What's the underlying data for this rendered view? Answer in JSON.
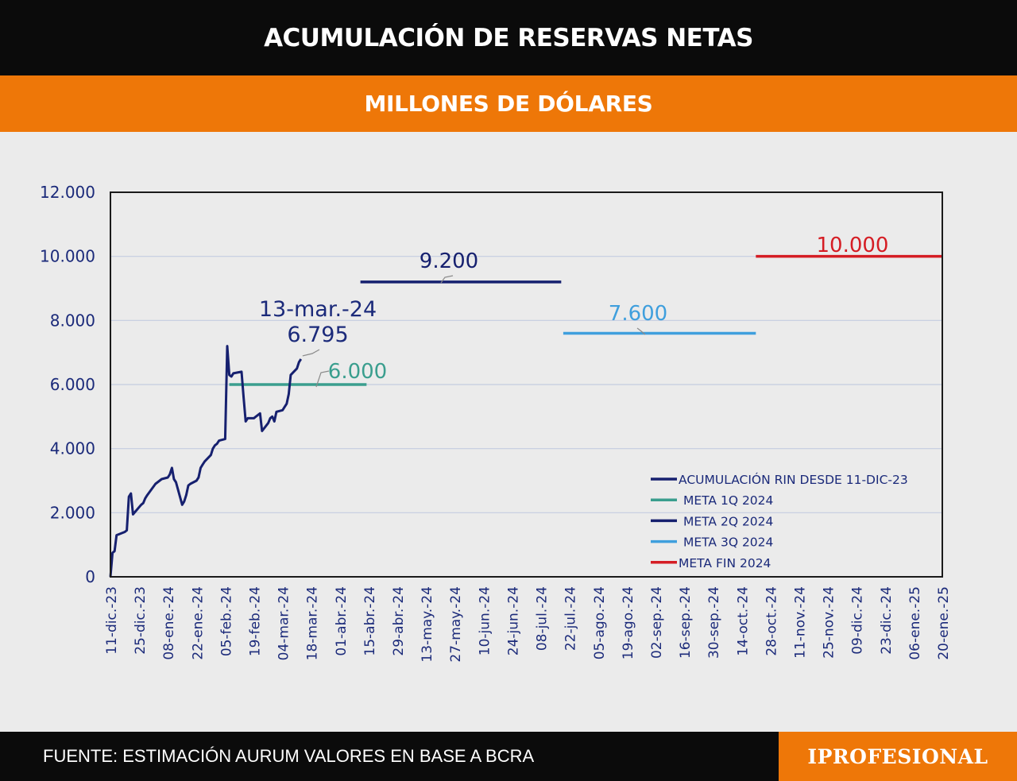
{
  "header": {
    "title": "ACUMULACIÓN DE RESERVAS NETAS",
    "subtitle": "MILLONES DE DÓLARES"
  },
  "footer": {
    "source": "FUENTE: ESTIMACIÓN AURUM VALORES EN BASE A BCRA",
    "brand": "IPROFESIONAL"
  },
  "chart_data": {
    "type": "line",
    "x_categories": [
      "11-dic.-23",
      "25-dic.-23",
      "08-ene.-24",
      "22-ene.-24",
      "05-feb.-24",
      "19-feb.-24",
      "04-mar.-24",
      "18-mar.-24",
      "01-abr.-24",
      "15-abr.-24",
      "29-abr.-24",
      "13-may.-24",
      "27-may.-24",
      "10-jun.-24",
      "24-jun.-24",
      "08-jul.-24",
      "22-jul.-24",
      "05-ago.-24",
      "19-ago.-24",
      "02-sep.-24",
      "16-sep.-24",
      "30-sep.-24",
      "14-oct.-24",
      "28-oct.-24",
      "11-nov.-24",
      "25-nov.-24",
      "09-dic.-24",
      "23-dic.-24",
      "06-ene.-25",
      "20-ene.-25"
    ],
    "y_ticks": [
      "0",
      "2.000",
      "4.000",
      "6.000",
      "8.000",
      "10.000",
      "12.000"
    ],
    "ylim": [
      0,
      12000
    ],
    "grid": true,
    "legend_position": "bottom-right",
    "series": [
      {
        "name": "ACUMULACIÓN RIN DESDE 11-DIC-23",
        "color": "#16206f",
        "points": [
          [
            "2023-12-11",
            0
          ],
          [
            "2023-12-12",
            750
          ],
          [
            "2023-12-13",
            800
          ],
          [
            "2023-12-14",
            1300
          ],
          [
            "2023-12-18",
            1400
          ],
          [
            "2023-12-19",
            1450
          ],
          [
            "2023-12-20",
            2500
          ],
          [
            "2023-12-21",
            2600
          ],
          [
            "2023-12-22",
            1950
          ],
          [
            "2023-12-26",
            2250
          ],
          [
            "2023-12-27",
            2300
          ],
          [
            "2023-12-28",
            2450
          ],
          [
            "2023-12-29",
            2550
          ],
          [
            "2024-01-02",
            2900
          ],
          [
            "2024-01-04",
            3000
          ],
          [
            "2024-01-05",
            3050
          ],
          [
            "2024-01-08",
            3100
          ],
          [
            "2024-01-09",
            3200
          ],
          [
            "2024-01-10",
            3400
          ],
          [
            "2024-01-11",
            3050
          ],
          [
            "2024-01-12",
            2950
          ],
          [
            "2024-01-15",
            2250
          ],
          [
            "2024-01-16",
            2350
          ],
          [
            "2024-01-17",
            2550
          ],
          [
            "2024-01-18",
            2850
          ],
          [
            "2024-01-19",
            2900
          ],
          [
            "2024-01-22",
            3000
          ],
          [
            "2024-01-23",
            3100
          ],
          [
            "2024-01-24",
            3400
          ],
          [
            "2024-01-25",
            3500
          ],
          [
            "2024-01-26",
            3600
          ],
          [
            "2024-01-29",
            3800
          ],
          [
            "2024-01-30",
            4000
          ],
          [
            "2024-01-31",
            4100
          ],
          [
            "2024-02-01",
            4150
          ],
          [
            "2024-02-02",
            4250
          ],
          [
            "2024-02-05",
            4300
          ],
          [
            "2024-02-06",
            7200
          ],
          [
            "2024-02-07",
            6300
          ],
          [
            "2024-02-08",
            6250
          ],
          [
            "2024-02-09",
            6350
          ],
          [
            "2024-02-13",
            6400
          ],
          [
            "2024-02-14",
            5600
          ],
          [
            "2024-02-15",
            4850
          ],
          [
            "2024-02-16",
            4950
          ],
          [
            "2024-02-19",
            4950
          ],
          [
            "2024-02-20",
            5000
          ],
          [
            "2024-02-21",
            5050
          ],
          [
            "2024-02-22",
            5100
          ],
          [
            "2024-02-23",
            4550
          ],
          [
            "2024-02-26",
            4800
          ],
          [
            "2024-02-27",
            4950
          ],
          [
            "2024-02-28",
            5000
          ],
          [
            "2024-02-29",
            4850
          ],
          [
            "2024-03-01",
            5150
          ],
          [
            "2024-03-04",
            5200
          ],
          [
            "2024-03-05",
            5300
          ],
          [
            "2024-03-06",
            5400
          ],
          [
            "2024-03-07",
            5700
          ],
          [
            "2024-03-08",
            6300
          ],
          [
            "2024-03-11",
            6500
          ],
          [
            "2024-03-12",
            6700
          ],
          [
            "2024-03-13",
            6795
          ]
        ]
      },
      {
        "name": "META 1Q 2024",
        "color": "#3a9e8e",
        "from": "2024-02-07",
        "to": "2024-04-14",
        "value": 6000,
        "label": "6.000"
      },
      {
        "name": "META 2Q 2024",
        "color": "#16206f",
        "from": "2024-04-11",
        "to": "2024-07-18",
        "value": 9200,
        "label": "9.200"
      },
      {
        "name": "META 3Q 2024",
        "color": "#3f9fdd",
        "from": "2024-07-19",
        "to": "2024-10-21",
        "value": 7600,
        "label": "7.600"
      },
      {
        "name": "META FIN 2024",
        "color": "#d51d24",
        "from": "2024-10-21",
        "to": "2025-01-20",
        "value": 10000,
        "label": "10.000"
      }
    ],
    "annotations": [
      {
        "text": "13-mar.-24",
        "x": "2024-03-13",
        "y": 6795
      },
      {
        "text": "6.795",
        "x": "2024-03-13",
        "y": 6795
      }
    ]
  }
}
